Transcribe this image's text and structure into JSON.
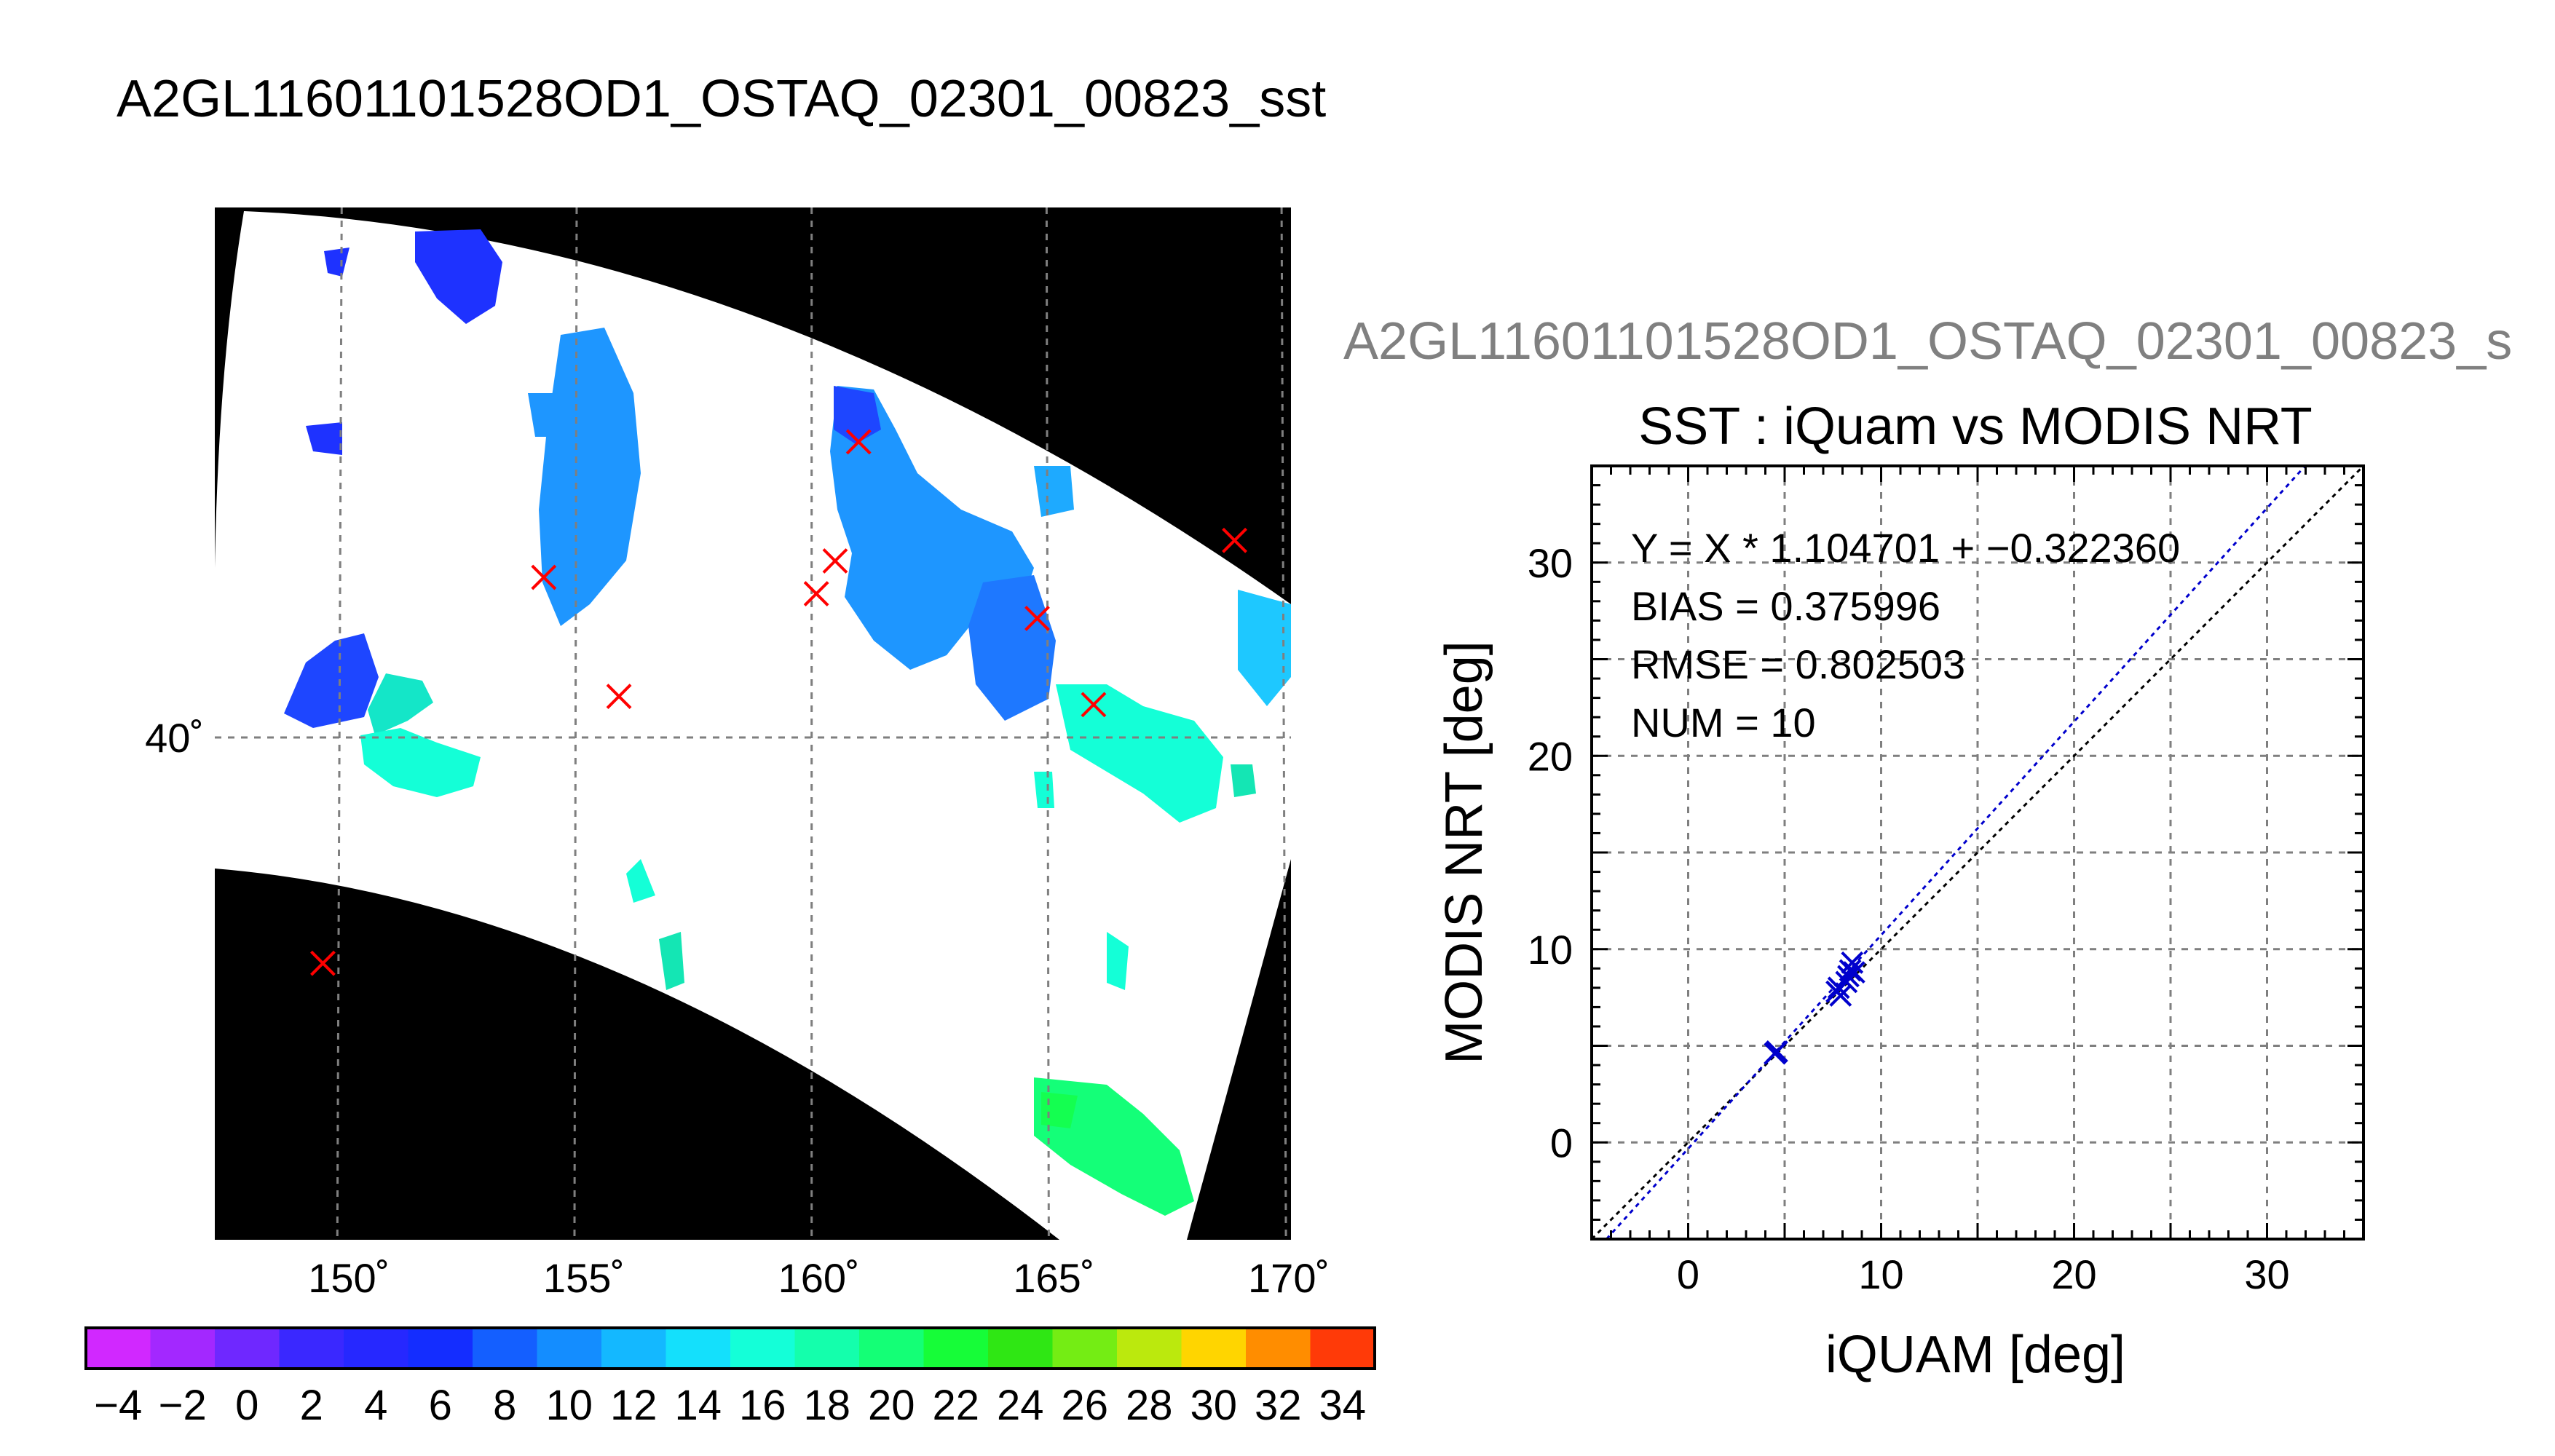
{
  "map_title": "A2GL11601101528OD1_OSTAQ_02301_00823_sst",
  "scatter_header": "A2GL11601101528OD1_OSTAQ_02301_00823_s",
  "map": {
    "lon_ticks": [
      "150˚",
      "155˚",
      "160˚",
      "165˚",
      "170˚"
    ],
    "lat_ticks": [
      "40˚"
    ],
    "colorbar_labels": [
      "−4",
      "−2",
      "0",
      "2",
      "4",
      "6",
      "8",
      "10",
      "12",
      "14",
      "16",
      "18",
      "20",
      "22",
      "24",
      "26",
      "28",
      "30",
      "32",
      "34"
    ],
    "colorbar_range": [
      -5,
      35
    ],
    "colorbar_step": 2
  },
  "chart_data": [
    {
      "type": "map",
      "title": "A2GL11601101528OD1_OSTAQ_02301_00823_sst",
      "lon_range": [
        147.3,
        170.2
      ],
      "x_ticks": [
        150,
        155,
        160,
        165,
        170
      ],
      "y_ticks": [
        40
      ],
      "grid": true,
      "matchup_markers": [
        {
          "lon": 149.6,
          "lat": 34.5
        },
        {
          "lon": 154.3,
          "lat": 43.9
        },
        {
          "lon": 155.9,
          "lat": 41.0
        },
        {
          "lon": 160.1,
          "lat": 43.5
        },
        {
          "lon": 160.5,
          "lat": 44.3
        },
        {
          "lon": 161.0,
          "lat": 47.2
        },
        {
          "lon": 164.8,
          "lat": 42.9
        },
        {
          "lon": 166.0,
          "lat": 40.8
        },
        {
          "lon": 169.0,
          "lat": 44.8
        }
      ],
      "colorbar": {
        "min": -5,
        "max": 35,
        "step": 2
      }
    },
    {
      "type": "scatter",
      "title": "SST : iQuam vs MODIS NRT",
      "xlabel": "iQUAM [deg]",
      "ylabel": "MODIS NRT [deg]",
      "xlim": [
        -5,
        35
      ],
      "ylim": [
        -5,
        35
      ],
      "x_ticks": [
        0,
        10,
        20,
        30
      ],
      "y_ticks": [
        0,
        10,
        20,
        30
      ],
      "grid": true,
      "annotations": [
        "Y = X * 1.104701 + −0.322360",
        "BIAS = 0.375996",
        "RMSE = 0.802503",
        "NUM = 10"
      ],
      "points": [
        {
          "x": 4.5,
          "y": 4.6
        },
        {
          "x": 4.6,
          "y": 4.7
        },
        {
          "x": 7.7,
          "y": 7.8
        },
        {
          "x": 7.9,
          "y": 7.6
        },
        {
          "x": 8.3,
          "y": 8.6
        },
        {
          "x": 8.4,
          "y": 8.9
        },
        {
          "x": 8.5,
          "y": 9.3
        },
        {
          "x": 8.2,
          "y": 8.3
        },
        {
          "x": 7.8,
          "y": 8.0
        },
        {
          "x": 8.6,
          "y": 8.8
        }
      ],
      "fit": {
        "slope": 1.104701,
        "intercept": -0.32236,
        "color": "#0000cc"
      },
      "identity_line": true
    }
  ]
}
